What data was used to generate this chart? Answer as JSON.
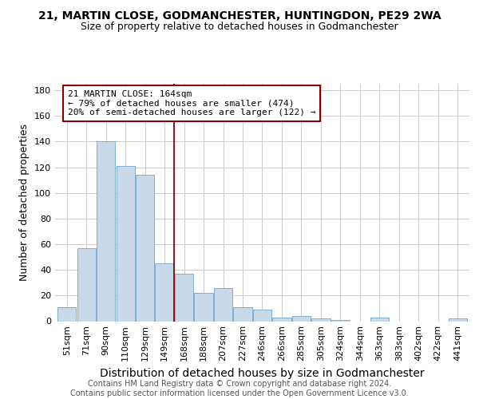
{
  "title1": "21, MARTIN CLOSE, GODMANCHESTER, HUNTINGDON, PE29 2WA",
  "title2": "Size of property relative to detached houses in Godmanchester",
  "xlabel": "Distribution of detached houses by size in Godmanchester",
  "ylabel": "Number of detached properties",
  "categories": [
    "51sqm",
    "71sqm",
    "90sqm",
    "110sqm",
    "129sqm",
    "149sqm",
    "168sqm",
    "188sqm",
    "207sqm",
    "227sqm",
    "246sqm",
    "266sqm",
    "285sqm",
    "305sqm",
    "324sqm",
    "344sqm",
    "363sqm",
    "383sqm",
    "402sqm",
    "422sqm",
    "441sqm"
  ],
  "values": [
    11,
    57,
    140,
    121,
    114,
    45,
    37,
    22,
    26,
    11,
    9,
    3,
    4,
    2,
    1,
    0,
    3,
    0,
    0,
    0,
    2
  ],
  "bar_color": "#c9d9e8",
  "bar_edge_color": "#7fafd4",
  "vline_x": 5.5,
  "vline_color": "#8b0000",
  "annotation_line1": "21 MARTIN CLOSE: 164sqm",
  "annotation_line2": "← 79% of detached houses are smaller (474)",
  "annotation_line3": "20% of semi-detached houses are larger (122) →",
  "annotation_box_color": "#8b0000",
  "ylim": [
    0,
    185
  ],
  "yticks": [
    0,
    20,
    40,
    60,
    80,
    100,
    120,
    140,
    160,
    180
  ],
  "footnote_line1": "Contains HM Land Registry data © Crown copyright and database right 2024.",
  "footnote_line2": "Contains public sector information licensed under the Open Government Licence v3.0.",
  "title1_fontsize": 10,
  "title2_fontsize": 9,
  "xlabel_fontsize": 10,
  "ylabel_fontsize": 9,
  "tick_fontsize": 8,
  "annotation_fontsize": 8,
  "footnote_fontsize": 7
}
